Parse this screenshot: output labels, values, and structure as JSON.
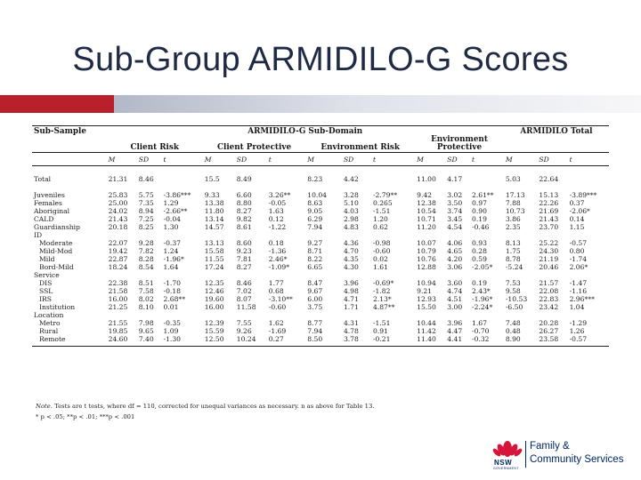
{
  "title": "Sub-Group ARMIDILO-G Scores",
  "colors": {
    "accent_red": "#b8202c",
    "brand_blue": "#002664"
  },
  "table": {
    "header": {
      "sub_sample": "Sub-Sample",
      "subdomain": "ARMIDILO-G Sub-Domain",
      "total": "ARMIDILO Total"
    },
    "groups": {
      "client_risk": "Client Risk",
      "client_protective": "Client Protective",
      "environment_risk": "Environment Risk",
      "environment_protective_1": "Environment",
      "environment_protective_2": "Protective"
    },
    "stats": [
      "M",
      "SD",
      "t",
      "M",
      "SD",
      "t",
      "M",
      "SD",
      "t",
      "M",
      "SD",
      "t",
      "M",
      "SD",
      "t"
    ],
    "rows": [
      {
        "label": "Total",
        "indent": false,
        "values": [
          "21.31",
          "8.46",
          "",
          "15.5",
          "8.49",
          "",
          "8.23",
          "4.42",
          "",
          "11.00",
          "4.17",
          "",
          "5.03",
          "22.64",
          ""
        ]
      },
      {
        "label": "",
        "indent": false,
        "values": []
      },
      {
        "label": "Juveniles",
        "indent": false,
        "values": [
          "25.83",
          "5.75",
          "-3.86***",
          "9.33",
          "6.60",
          "3.26**",
          "10.04",
          "3.28",
          "-2.79**",
          "9.42",
          "3.02",
          "2.61**",
          "17.13",
          "15.13",
          "-3.89***"
        ]
      },
      {
        "label": "Females",
        "indent": false,
        "values": [
          "25.00",
          "7.35",
          "1.29",
          "13.38",
          "8.80",
          "-0.05",
          "8.63",
          "5.10",
          "0.265",
          "12.38",
          "3.50",
          "0.97",
          "7.88",
          "22.26",
          "0.37"
        ]
      },
      {
        "label": "Aboriginal",
        "indent": false,
        "values": [
          "24.02",
          "8.94",
          "-2.66**",
          "11.80",
          "8.27",
          "1.63",
          "9.05",
          "4.03",
          "-1.51",
          "10.54",
          "3.74",
          "0.90",
          "10.73",
          "21.69",
          "-2.06*"
        ]
      },
      {
        "label": "CALD",
        "indent": false,
        "values": [
          "21.43",
          "7.25",
          "-0.04",
          "13.14",
          "9.82",
          "0.12",
          "6.29",
          "2.98",
          "1.20",
          "10.71",
          "3.45",
          "0.19",
          "3.86",
          "21.43",
          "0.14"
        ]
      },
      {
        "label": "Guardianship",
        "indent": false,
        "values": [
          "20.18",
          "8.25",
          "1.30",
          "14.57",
          "8.61",
          "-1.22",
          "7.94",
          "4.83",
          "0.62",
          "11.20",
          "4.54",
          "-0.46",
          "2.35",
          "23.70",
          "1.15"
        ]
      },
      {
        "label": "ID",
        "indent": false,
        "values": []
      },
      {
        "label": "Moderate",
        "indent": true,
        "values": [
          "22.07",
          "9.28",
          "-0.37",
          "13.13",
          "8.60",
          "0.18",
          "9.27",
          "4.36",
          "-0.98",
          "10.07",
          "4.06",
          "0.93",
          "8.13",
          "25.22",
          "-0.57"
        ]
      },
      {
        "label": "Mild-Mod",
        "indent": true,
        "values": [
          "19.42",
          "7.82",
          "1.24",
          "15.58",
          "9.23",
          "-1.36",
          "8.71",
          "4.70",
          "-0.60",
          "10.79",
          "4.65",
          "0.28",
          "1.75",
          "24.30",
          "0.80"
        ]
      },
      {
        "label": "Mild",
        "indent": true,
        "values": [
          "22.87",
          "8.28",
          "-1.96*",
          "11.55",
          "7.81",
          "2.46*",
          "8.22",
          "4.35",
          "0.02",
          "10.76",
          "4.20",
          "0.59",
          "8.78",
          "21.19",
          "-1.74"
        ]
      },
      {
        "label": "Bord-Mild",
        "indent": true,
        "values": [
          "18.24",
          "8.54",
          "1.64",
          "17.24",
          "8.27",
          "-1.09*",
          "6.65",
          "4.30",
          "1.61",
          "12.88",
          "3.06",
          "-2.05*",
          "-5.24",
          "20.46",
          "2.06*"
        ]
      },
      {
        "label": "Service",
        "indent": false,
        "values": []
      },
      {
        "label": "DIS",
        "indent": true,
        "values": [
          "22.38",
          "8.51",
          "-1.70",
          "12.35",
          "8.46",
          "1.77",
          "8.47",
          "3.96",
          "-0.69*",
          "10.94",
          "3.60",
          "0.19",
          "7.53",
          "21.57",
          "-1.47"
        ]
      },
      {
        "label": "SSL",
        "indent": true,
        "values": [
          "21.58",
          "7.58",
          "-0.18",
          "12.46",
          "7.02",
          "0.68",
          "9.67",
          "4.98",
          "-1.82",
          "9.21",
          "4.74",
          "2.43*",
          "9.58",
          "22.08",
          "-1.16"
        ]
      },
      {
        "label": "IRS",
        "indent": true,
        "values": [
          "16.00",
          "8.02",
          "2.68**",
          "19.60",
          "8.07",
          "-3.10**",
          "6.00",
          "4.71",
          "2.13*",
          "12.93",
          "4.51",
          "-1.96*",
          "-10.53",
          "22.83",
          "2.96***"
        ]
      },
      {
        "label": "Institution",
        "indent": true,
        "values": [
          "21.25",
          "8.10",
          "0.01",
          "16.00",
          "11.58",
          "-0.60",
          "3.75",
          "1.71",
          "4.87**",
          "15.50",
          "3.00",
          "-2.24*",
          "-6.50",
          "23.42",
          "1.04"
        ]
      },
      {
        "label": "Location",
        "indent": false,
        "values": []
      },
      {
        "label": "Metro",
        "indent": true,
        "values": [
          "21.55",
          "7.98",
          "-0.35",
          "12.39",
          "7.55",
          "1.62",
          "8.77",
          "4.31",
          "-1.51",
          "10.44",
          "3.96",
          "1.67",
          "7.48",
          "20.28",
          "-1.29"
        ]
      },
      {
        "label": "Rural",
        "indent": true,
        "values": [
          "19.85",
          "9.65",
          "1.09",
          "15.59",
          "9.26",
          "-1.69",
          "7.94",
          "4.78",
          "0.91",
          "11.42",
          "4.47",
          "-0.70",
          "0.48",
          "26.27",
          "1.26"
        ]
      },
      {
        "label": "Remote",
        "indent": true,
        "values": [
          "24.60",
          "7.40",
          "-1.30",
          "12.50",
          "10.24",
          "0.27",
          "8.50",
          "3.78",
          "-0.21",
          "11.40",
          "4.41",
          "-0.32",
          "8.90",
          "23.58",
          "-0.57"
        ]
      }
    ]
  },
  "note": {
    "line1_prefix": "Note.",
    "line1_body": " Tests are t tests, where df = 110, corrected for unequal variances as necessary. n as above for Table 13.",
    "line2": "* p < .05; **p < .01; ***p < .001"
  },
  "logo": {
    "nsw": "NSW",
    "government": "GOVERNMENT",
    "line1": "Family &",
    "line2": "Community Services"
  }
}
